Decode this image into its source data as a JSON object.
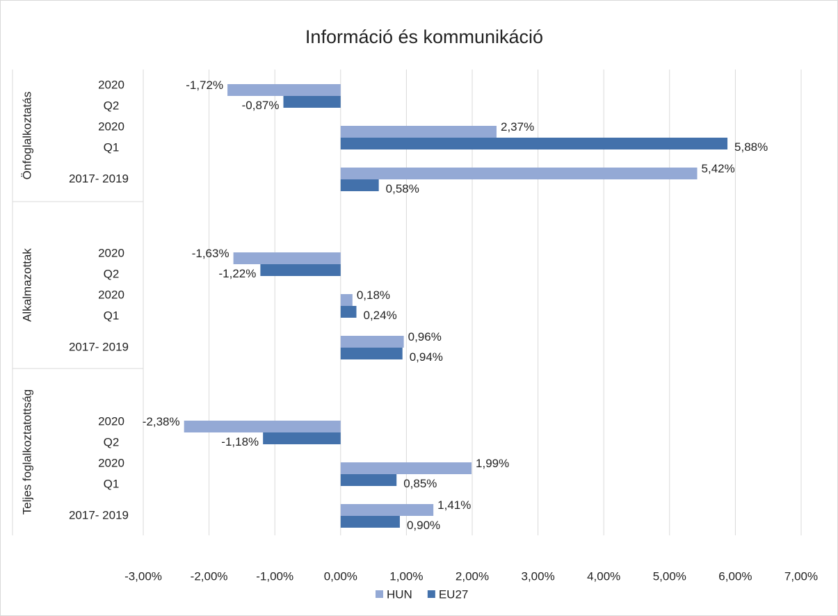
{
  "chart_data": {
    "type": "bar",
    "orientation": "horizontal",
    "title": "Információ és kommunikáció",
    "groups": [
      "Önfoglalkoztatás",
      "Alkalmazottak",
      "Teljes foglalkoztatottság"
    ],
    "categories": [
      [
        [
          "2020",
          "Q2"
        ],
        [
          "2020",
          "Q1"
        ],
        [
          "2017- 2019"
        ]
      ],
      [
        [
          "2020",
          "Q2"
        ],
        [
          "2020",
          "Q1"
        ],
        [
          "2017- 2019"
        ]
      ],
      [
        [
          "2020",
          "Q2"
        ],
        [
          "2020",
          "Q1"
        ],
        [
          "2017- 2019"
        ]
      ]
    ],
    "series": [
      {
        "name": "HUN",
        "color": "#94a9d5",
        "values": [
          [
            -1.72,
            2.37,
            5.42
          ],
          [
            -1.63,
            0.18,
            0.96
          ],
          [
            -2.38,
            1.99,
            1.41
          ]
        ],
        "value_labels": [
          [
            "-1,72%",
            "2,37%",
            "5,42%"
          ],
          [
            "-1,63%",
            "0,18%",
            "0,96%"
          ],
          [
            "-2,38%",
            "1,99%",
            "1,41%"
          ]
        ]
      },
      {
        "name": "EU27",
        "color": "#4371ab",
        "values": [
          [
            -0.87,
            5.88,
            0.58
          ],
          [
            -1.22,
            0.24,
            0.94
          ],
          [
            -1.18,
            0.85,
            0.9
          ]
        ],
        "value_labels": [
          [
            "-0,87%",
            "5,88%",
            "0,58%"
          ],
          [
            "-1,22%",
            "0,24%",
            "0,94%"
          ],
          [
            "-1,18%",
            "0,85%",
            "0,90%"
          ]
        ]
      }
    ],
    "xlim": [
      -3,
      7
    ],
    "xticks": [
      {
        "value": -3,
        "label": "-3,00%"
      },
      {
        "value": -2,
        "label": "-2,00%"
      },
      {
        "value": -1,
        "label": "-1,00%"
      },
      {
        "value": 0,
        "label": "0,00%"
      },
      {
        "value": 1,
        "label": "1,00%"
      },
      {
        "value": 2,
        "label": "2,00%"
      },
      {
        "value": 3,
        "label": "3,00%"
      },
      {
        "value": 4,
        "label": "4,00%"
      },
      {
        "value": 5,
        "label": "5,00%"
      },
      {
        "value": 6,
        "label": "6,00%"
      },
      {
        "value": 7,
        "label": "7,00%"
      }
    ],
    "grid": true,
    "legend": "bottom"
  }
}
